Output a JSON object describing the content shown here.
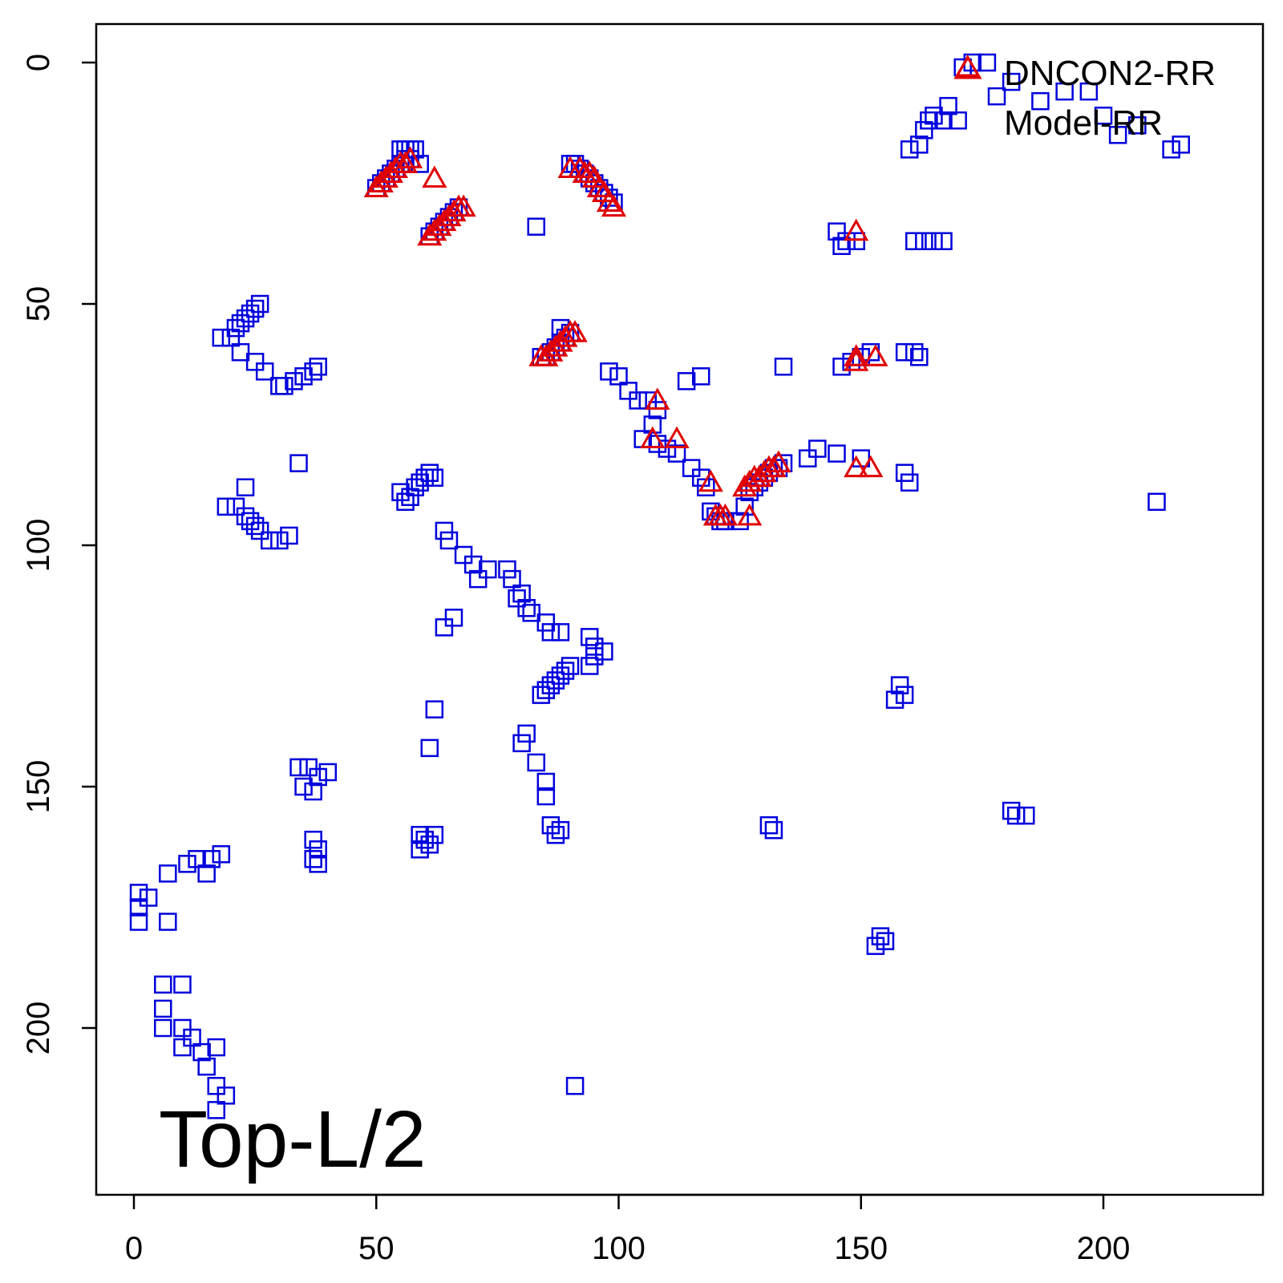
{
  "chart_data": {
    "type": "scatter",
    "title": "",
    "xlabel": "",
    "ylabel": "",
    "xlim": [
      -8,
      232
    ],
    "ylim": [
      -8,
      232
    ],
    "y_reversed": true,
    "x_ticks": [
      0,
      50,
      100,
      150,
      200
    ],
    "y_ticks": [
      0,
      50,
      100,
      150,
      200
    ],
    "annotation": "Top-L/2",
    "legend": {
      "placement": "top-right"
    },
    "series": [
      {
        "name": "DNCON2-RR",
        "marker": "triangle",
        "color": "#e00000",
        "points": [
          [
            50,
            26
          ],
          [
            51,
            25
          ],
          [
            52,
            24
          ],
          [
            53,
            23
          ],
          [
            54,
            22
          ],
          [
            55,
            21
          ],
          [
            56,
            21
          ],
          [
            57,
            20
          ],
          [
            62,
            24
          ],
          [
            61,
            36
          ],
          [
            62,
            35
          ],
          [
            63,
            34
          ],
          [
            64,
            33
          ],
          [
            65,
            32
          ],
          [
            66,
            31
          ],
          [
            67,
            30
          ],
          [
            68,
            30
          ],
          [
            90,
            22
          ],
          [
            92,
            22
          ],
          [
            93,
            23
          ],
          [
            94,
            23
          ],
          [
            95,
            24
          ],
          [
            96,
            26
          ],
          [
            97,
            27
          ],
          [
            98,
            29
          ],
          [
            99,
            30
          ],
          [
            84,
            61
          ],
          [
            85,
            61
          ],
          [
            86,
            60
          ],
          [
            87,
            59
          ],
          [
            88,
            58
          ],
          [
            89,
            57
          ],
          [
            90,
            56
          ],
          [
            91,
            56
          ],
          [
            108,
            70
          ],
          [
            107,
            78
          ],
          [
            112,
            78
          ],
          [
            119,
            87
          ],
          [
            120,
            94
          ],
          [
            121,
            94
          ],
          [
            122,
            94
          ],
          [
            127,
            94
          ],
          [
            126,
            88
          ],
          [
            127,
            87
          ],
          [
            128,
            86
          ],
          [
            129,
            86
          ],
          [
            130,
            85
          ],
          [
            131,
            84
          ],
          [
            132,
            84
          ],
          [
            133,
            83
          ],
          [
            149,
            35
          ],
          [
            149,
            61
          ],
          [
            149,
            62
          ],
          [
            153,
            61
          ],
          [
            149,
            84
          ],
          [
            152,
            84
          ],
          [
            172,
            1
          ]
        ]
      },
      {
        "name": "Model-RR",
        "marker": "square",
        "color": "#0000dd",
        "points": [
          [
            50,
            26
          ],
          [
            51,
            25
          ],
          [
            52,
            24
          ],
          [
            53,
            23
          ],
          [
            54,
            22
          ],
          [
            55,
            21
          ],
          [
            56,
            20
          ],
          [
            57,
            20
          ],
          [
            55,
            18
          ],
          [
            56,
            18
          ],
          [
            57,
            18
          ],
          [
            58,
            18
          ],
          [
            59,
            21
          ],
          [
            61,
            36
          ],
          [
            62,
            35
          ],
          [
            63,
            34
          ],
          [
            64,
            33
          ],
          [
            65,
            32
          ],
          [
            66,
            31
          ],
          [
            67,
            30
          ],
          [
            83,
            34
          ],
          [
            90,
            21
          ],
          [
            91,
            21
          ],
          [
            92,
            22
          ],
          [
            93,
            23
          ],
          [
            94,
            24
          ],
          [
            95,
            25
          ],
          [
            96,
            26
          ],
          [
            97,
            27
          ],
          [
            98,
            28
          ],
          [
            99,
            29
          ],
          [
            84,
            61
          ],
          [
            85,
            61
          ],
          [
            86,
            60
          ],
          [
            87,
            59
          ],
          [
            88,
            58
          ],
          [
            89,
            57
          ],
          [
            90,
            56
          ],
          [
            88,
            55
          ],
          [
            98,
            64
          ],
          [
            100,
            65
          ],
          [
            102,
            68
          ],
          [
            104,
            70
          ],
          [
            106,
            70
          ],
          [
            108,
            72
          ],
          [
            107,
            75
          ],
          [
            105,
            78
          ],
          [
            108,
            79
          ],
          [
            110,
            80
          ],
          [
            112,
            81
          ],
          [
            115,
            84
          ],
          [
            117,
            86
          ],
          [
            118,
            88
          ],
          [
            119,
            93
          ],
          [
            120,
            94
          ],
          [
            121,
            95
          ],
          [
            122,
            95
          ],
          [
            125,
            95
          ],
          [
            126,
            92
          ],
          [
            127,
            89
          ],
          [
            128,
            88
          ],
          [
            129,
            87
          ],
          [
            130,
            86
          ],
          [
            131,
            85
          ],
          [
            132,
            84
          ],
          [
            133,
            84
          ],
          [
            134,
            83
          ],
          [
            139,
            82
          ],
          [
            141,
            80
          ],
          [
            145,
            81
          ],
          [
            150,
            82
          ],
          [
            114,
            66
          ],
          [
            117,
            65
          ],
          [
            134,
            63
          ],
          [
            146,
            63
          ],
          [
            148,
            62
          ],
          [
            150,
            61
          ],
          [
            152,
            60
          ],
          [
            159,
            60
          ],
          [
            161,
            60
          ],
          [
            162,
            61
          ],
          [
            145,
            35
          ],
          [
            146,
            38
          ],
          [
            147,
            37
          ],
          [
            149,
            37
          ],
          [
            161,
            37
          ],
          [
            163,
            37
          ],
          [
            165,
            37
          ],
          [
            167,
            37
          ],
          [
            159,
            85
          ],
          [
            160,
            87
          ],
          [
            211,
            91
          ],
          [
            160,
            18
          ],
          [
            162,
            17
          ],
          [
            163,
            14
          ],
          [
            164,
            12
          ],
          [
            165,
            11
          ],
          [
            167,
            12
          ],
          [
            168,
            9
          ],
          [
            170,
            12
          ],
          [
            171,
            1
          ],
          [
            173,
            0
          ],
          [
            176,
            0
          ],
          [
            178,
            7
          ],
          [
            181,
            4
          ],
          [
            187,
            8
          ],
          [
            192,
            6
          ],
          [
            197,
            6
          ],
          [
            200,
            11
          ],
          [
            203,
            15
          ],
          [
            207,
            13
          ],
          [
            214,
            18
          ],
          [
            216,
            17
          ],
          [
            18,
            57
          ],
          [
            20,
            57
          ],
          [
            21,
            55
          ],
          [
            22,
            54
          ],
          [
            23,
            53
          ],
          [
            24,
            52
          ],
          [
            25,
            51
          ],
          [
            26,
            50
          ],
          [
            22,
            60
          ],
          [
            25,
            62
          ],
          [
            27,
            64
          ],
          [
            30,
            67
          ],
          [
            31,
            67
          ],
          [
            33,
            66
          ],
          [
            35,
            65
          ],
          [
            37,
            64
          ],
          [
            38,
            63
          ],
          [
            34,
            83
          ],
          [
            19,
            92
          ],
          [
            21,
            92
          ],
          [
            23,
            94
          ],
          [
            24,
            95
          ],
          [
            25,
            96
          ],
          [
            26,
            97
          ],
          [
            28,
            99
          ],
          [
            30,
            99
          ],
          [
            32,
            98
          ],
          [
            23,
            88
          ],
          [
            55,
            89
          ],
          [
            56,
            91
          ],
          [
            57,
            90
          ],
          [
            58,
            88
          ],
          [
            59,
            87
          ],
          [
            60,
            86
          ],
          [
            61,
            85
          ],
          [
            62,
            86
          ],
          [
            64,
            97
          ],
          [
            65,
            99
          ],
          [
            68,
            102
          ],
          [
            70,
            104
          ],
          [
            71,
            107
          ],
          [
            73,
            105
          ],
          [
            77,
            105
          ],
          [
            78,
            107
          ],
          [
            79,
            111
          ],
          [
            80,
            110
          ],
          [
            81,
            113
          ],
          [
            82,
            114
          ],
          [
            85,
            116
          ],
          [
            86,
            118
          ],
          [
            88,
            118
          ],
          [
            64,
            117
          ],
          [
            66,
            115
          ],
          [
            94,
            119
          ],
          [
            95,
            121
          ],
          [
            95,
            123
          ],
          [
            97,
            122
          ],
          [
            94,
            125
          ],
          [
            84,
            131
          ],
          [
            85,
            130
          ],
          [
            86,
            129
          ],
          [
            87,
            128
          ],
          [
            88,
            127
          ],
          [
            89,
            126
          ],
          [
            90,
            125
          ],
          [
            62,
            134
          ],
          [
            61,
            142
          ],
          [
            81,
            139
          ],
          [
            80,
            141
          ],
          [
            83,
            145
          ],
          [
            85,
            149
          ],
          [
            85,
            152
          ],
          [
            34,
            146
          ],
          [
            36,
            146
          ],
          [
            38,
            148
          ],
          [
            40,
            147
          ],
          [
            35,
            150
          ],
          [
            37,
            151
          ],
          [
            37,
            161
          ],
          [
            38,
            163
          ],
          [
            37,
            165
          ],
          [
            38,
            166
          ],
          [
            59,
            160
          ],
          [
            60,
            161
          ],
          [
            61,
            162
          ],
          [
            62,
            160
          ],
          [
            59,
            163
          ],
          [
            86,
            158
          ],
          [
            87,
            160
          ],
          [
            88,
            159
          ],
          [
            131,
            158
          ],
          [
            132,
            159
          ],
          [
            158,
            129
          ],
          [
            159,
            131
          ],
          [
            157,
            132
          ],
          [
            153,
            183
          ],
          [
            154,
            181
          ],
          [
            155,
            182
          ],
          [
            181,
            155
          ],
          [
            182,
            156
          ],
          [
            184,
            156
          ],
          [
            1,
            172
          ],
          [
            3,
            173
          ],
          [
            1,
            175
          ],
          [
            1,
            178
          ],
          [
            7,
            178
          ],
          [
            7,
            168
          ],
          [
            11,
            166
          ],
          [
            13,
            165
          ],
          [
            15,
            168
          ],
          [
            16,
            165
          ],
          [
            18,
            164
          ],
          [
            6,
            191
          ],
          [
            10,
            191
          ],
          [
            6,
            196
          ],
          [
            6,
            200
          ],
          [
            10,
            200
          ],
          [
            10,
            204
          ],
          [
            12,
            202
          ],
          [
            14,
            205
          ],
          [
            15,
            208
          ],
          [
            17,
            204
          ],
          [
            17,
            212
          ],
          [
            19,
            214
          ],
          [
            17,
            217
          ],
          [
            91,
            212
          ]
        ]
      }
    ]
  }
}
